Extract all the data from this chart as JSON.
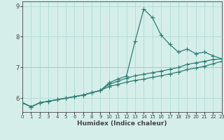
{
  "xlabel": "Humidex (Indice chaleur)",
  "x": [
    0,
    1,
    2,
    3,
    4,
    5,
    6,
    7,
    8,
    9,
    10,
    11,
    12,
    13,
    14,
    15,
    16,
    17,
    18,
    19,
    20,
    21,
    22,
    23
  ],
  "y_main": [
    5.85,
    5.72,
    5.85,
    5.9,
    5.95,
    6.0,
    6.05,
    6.1,
    6.18,
    6.25,
    6.5,
    6.62,
    6.72,
    7.85,
    8.9,
    8.62,
    8.05,
    7.75,
    7.5,
    7.6,
    7.45,
    7.5,
    7.38,
    7.28
  ],
  "y_low": [
    5.85,
    5.72,
    5.85,
    5.9,
    5.95,
    6.0,
    6.05,
    6.1,
    6.18,
    6.25,
    6.38,
    6.45,
    6.52,
    6.58,
    6.62,
    6.68,
    6.73,
    6.79,
    6.85,
    6.93,
    6.98,
    7.04,
    7.12,
    7.2
  ],
  "y_high": [
    5.85,
    5.72,
    5.85,
    5.9,
    5.95,
    6.0,
    6.05,
    6.1,
    6.18,
    6.25,
    6.45,
    6.55,
    6.65,
    6.73,
    6.78,
    6.83,
    6.88,
    6.94,
    7.0,
    7.1,
    7.15,
    7.2,
    7.26,
    7.28
  ],
  "line_color": "#2e7d72",
  "bg_color": "#d5eeea",
  "grid_color": "#a8d8d2",
  "redline_color": "#cc8888",
  "axis_color": "#444444",
  "ylim_min": 5.55,
  "ylim_max": 9.15,
  "xlim_min": 0,
  "xlim_max": 23,
  "yticks": [
    6,
    7,
    8,
    9
  ],
  "xticks": [
    0,
    1,
    2,
    3,
    4,
    5,
    6,
    7,
    8,
    9,
    10,
    11,
    12,
    13,
    14,
    15,
    16,
    17,
    18,
    19,
    20,
    21,
    22,
    23
  ],
  "markersize": 2.2,
  "linewidth": 0.9,
  "xlabel_fontsize": 6.5,
  "tick_fontsize_x": 5.0,
  "tick_fontsize_y": 6.0
}
